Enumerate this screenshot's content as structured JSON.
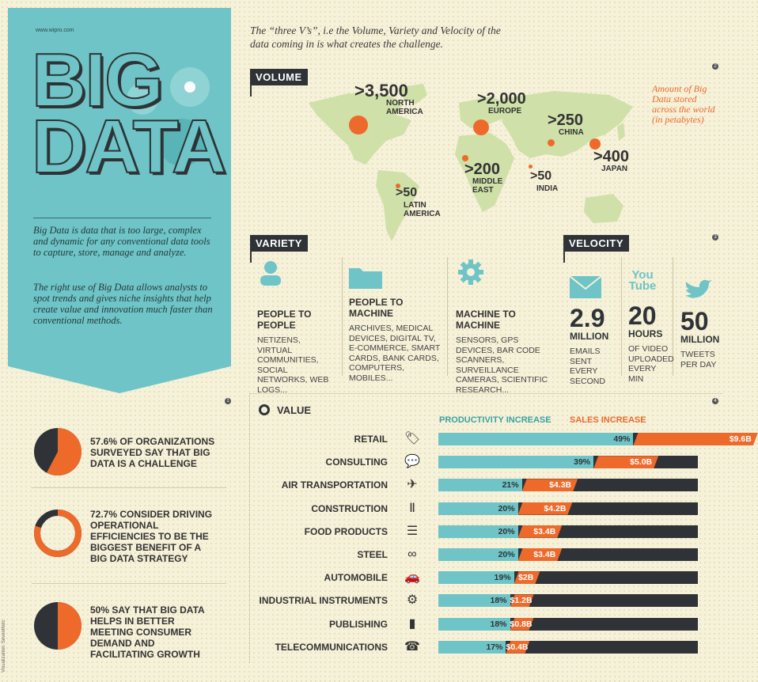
{
  "intro": {
    "url": "www.wipro.com",
    "title_line1": "BIG",
    "title_line2": "DATA",
    "para1": "Big Data is data that is too large, complex and dynamic for any conventional data tools to capture, store, manage and analyze.",
    "para2": "The right use of Big Data allows analysts to spot trends and gives niche insights that help create value and innovation much faster than conventional methods."
  },
  "heading": "The “three V’s”, i.e the Volume, Variety and Velocity of the data coming in is what creates the challenge.",
  "volume": {
    "label": "VOLUME",
    "note": "Amount of Big Data stored across the world (in petabytes)",
    "regions": [
      {
        "value": ">3,500",
        "name": "NORTH AMERICA"
      },
      {
        "value": ">2,000",
        "name": "EUROPE"
      },
      {
        "value": ">250",
        "name": "CHINA"
      },
      {
        "value": ">400",
        "name": "JAPAN"
      },
      {
        "value": ">200",
        "name": "MIDDLE EAST"
      },
      {
        "value": ">50",
        "name": "INDIA"
      },
      {
        "value": ">50",
        "name": "LATIN AMERICA"
      }
    ]
  },
  "variety": {
    "label": "VARIETY",
    "items": [
      {
        "title": "PEOPLE TO PEOPLE",
        "desc": "NETIZENS, VIRTUAL COMMUNITIES, SOCIAL NETWORKS, WEB LOGS..."
      },
      {
        "title": "PEOPLE TO MACHINE",
        "desc": "ARCHIVES, MEDICAL DEVICES, DIGITAL TV, E-COMMERCE, SMART CARDS, BANK CARDS, COMPUTERS, MOBILES..."
      },
      {
        "title": "MACHINE TO MACHINE",
        "desc": "SENSORS, GPS DEVICES, BAR CODE SCANNERS, SURVEILLANCE CAMERAS, SCIENTIFIC RESEARCH..."
      }
    ]
  },
  "velocity": {
    "label": "VELOCITY",
    "youtube": "You Tube",
    "items": [
      {
        "num": "2.9",
        "unit": "MILLION",
        "desc": "EMAILS SENT EVERY SECOND"
      },
      {
        "num": "20",
        "unit": "HOURS",
        "desc": "OF VIDEO UPLOADED EVERY MIN"
      },
      {
        "num": "50",
        "unit": "MILLION",
        "desc": "TWEETS PER DAY"
      }
    ]
  },
  "stats": [
    {
      "text": "57.6% OF ORGANIZATIONS SURVEYED SAY THAT BIG DATA IS A CHALLENGE",
      "value": 57.6
    },
    {
      "text": "72.7% CONSIDER DRIVING OPERATIONAL EFFICIENCIES TO BE THE BIGGEST BENEFIT OF A BIG DATA STRATEGY",
      "value": 72.7
    },
    {
      "text": "50% SAY THAT BIG DATA HELPS IN BETTER MEETING CONSUMER DEMAND AND FACILITATING GROWTH",
      "value": 50
    }
  ],
  "value": {
    "label": "VALUE",
    "legend_productivity": "PRODUCTIVITY INCREASE",
    "legend_sales": "SALES INCREASE",
    "rows": [
      {
        "industry": "RETAIL",
        "icon": "price-tag-icon",
        "productivity": "49%",
        "sales": "$9.6B",
        "p": 49,
        "s": 9.6
      },
      {
        "industry": "CONSULTING",
        "icon": "speech-bubble-icon",
        "productivity": "39%",
        "sales": "$5.0B",
        "p": 39,
        "s": 5.0
      },
      {
        "industry": "AIR TRANSPORTATION",
        "icon": "airplane-icon",
        "productivity": "21%",
        "sales": "$4.3B",
        "p": 21,
        "s": 4.3
      },
      {
        "industry": "CONSTRUCTION",
        "icon": "pillars-icon",
        "productivity": "20%",
        "sales": "$4.2B",
        "p": 20,
        "s": 4.2
      },
      {
        "industry": "FOOD PRODUCTS",
        "icon": "burger-icon",
        "productivity": "20%",
        "sales": "$3.4B",
        "p": 20,
        "s": 3.4
      },
      {
        "industry": "STEEL",
        "icon": "chain-link-icon",
        "productivity": "20%",
        "sales": "$3.4B",
        "p": 20,
        "s": 3.4
      },
      {
        "industry": "AUTOMOBILE",
        "icon": "car-icon",
        "productivity": "19%",
        "sales": "$2B",
        "p": 19,
        "s": 2.0
      },
      {
        "industry": "INDUSTRIAL INSTRUMENTS",
        "icon": "gear-icon",
        "productivity": "18%",
        "sales": "$1.2B",
        "p": 18,
        "s": 1.2
      },
      {
        "industry": "PUBLISHING",
        "icon": "book-icon",
        "productivity": "18%",
        "sales": "$0.8B",
        "p": 18,
        "s": 0.8
      },
      {
        "industry": "TELECOMMUNICATIONS",
        "icon": "telephone-icon",
        "productivity": "17%",
        "sales": "$0.4B",
        "p": 17,
        "s": 0.4
      }
    ]
  },
  "credit": "Visualization: Seventhstc",
  "colors": {
    "teal": "#6ec4c6",
    "orange": "#ee6a2b",
    "dark": "#2f3337",
    "bg": "#f6f1d9"
  }
}
